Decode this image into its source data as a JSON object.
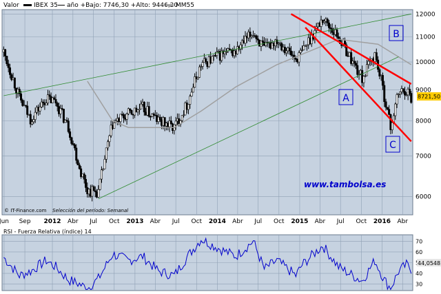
{
  "header": {
    "valor_label": "Valor",
    "series_label": "IBEX 35",
    "stats_label": "año +Bajo: 7746,30 +Alto: 9446,20",
    "ma_label": "MM55"
  },
  "footer": {
    "source": "© IT-Finance.com",
    "selection": "Selección del período: Semanal"
  },
  "watermark": "www.tambolsa.es",
  "annotations": {
    "a": "A",
    "b": "B",
    "c": "C"
  },
  "current_value_label": "8721,50",
  "rsi": {
    "title": "RSI - Fuerza Relativa (índice) 14",
    "current_value_label": "44,0548"
  },
  "colors": {
    "plot_bg": "#c6d2e0",
    "candle": "#000000",
    "moving_average": "#a0a0a0",
    "channel_green": "#2e8b2e",
    "channel_red": "#ff0000",
    "rsi_line": "#0000cc",
    "annotation": "#0000cc",
    "price_tag": "#ffcc00"
  },
  "chart_data": [
    {
      "type": "candlestick",
      "title": "IBEX 35",
      "series": [
        {
          "name": "IBEX 35",
          "close_keypoints": [
            [
              "2011-05-30",
              10380
            ],
            [
              "2011-08-08",
              8700
            ],
            [
              "2011-09-26",
              8050
            ],
            [
              "2011-12-05",
              8700
            ],
            [
              "2012-01-16",
              8600
            ],
            [
              "2012-03-12",
              7800
            ],
            [
              "2012-04-30",
              6700
            ],
            [
              "2012-06-04",
              6150
            ],
            [
              "2012-07-23",
              6100
            ],
            [
              "2012-09-24",
              7900
            ],
            [
              "2012-12-03",
              8200
            ],
            [
              "2013-02-04",
              8400
            ],
            [
              "2013-04-15",
              8000
            ],
            [
              "2013-06-24",
              7800
            ],
            [
              "2013-08-19",
              8500
            ],
            [
              "2013-10-21",
              9900
            ],
            [
              "2014-01-20",
              10300
            ],
            [
              "2014-03-24",
              10400
            ],
            [
              "2014-06-09",
              11200
            ],
            [
              "2014-07-28",
              10500
            ],
            [
              "2014-09-22",
              10900
            ],
            [
              "2014-12-15",
              10100
            ],
            [
              "2015-01-12",
              10400
            ],
            [
              "2015-04-13",
              11800
            ],
            [
              "2015-06-22",
              11000
            ],
            [
              "2015-08-24",
              10000
            ],
            [
              "2015-10-05",
              9400
            ],
            [
              "2015-11-30",
              10300
            ],
            [
              "2016-01-11",
              8800
            ],
            [
              "2016-02-08",
              7800
            ],
            [
              "2016-03-14",
              8900
            ],
            [
              "2016-04-18",
              9000
            ],
            [
              "2016-05-09",
              8721.5
            ]
          ]
        },
        {
          "name": "MM55",
          "points": [
            [
              "2012-06-04",
              9300
            ],
            [
              "2012-09-24",
              8000
            ],
            [
              "2012-12-03",
              7800
            ],
            [
              "2013-06-24",
              7800
            ],
            [
              "2013-10-21",
              8300
            ],
            [
              "2014-03-24",
              9100
            ],
            [
              "2014-09-22",
              9900
            ],
            [
              "2015-01-12",
              10300
            ],
            [
              "2015-06-22",
              10900
            ],
            [
              "2015-12-14",
              10700
            ],
            [
              "2016-05-09",
              9900
            ]
          ]
        }
      ],
      "trend_lines": [
        {
          "name": "green-channel-upper",
          "from": [
            "2011-05-30",
            8800
          ],
          "to": [
            "2016-05-09",
            12000
          ]
        },
        {
          "name": "green-channel-lower",
          "from": [
            "2012-07-23",
            5950
          ],
          "to": [
            "2016-03-14",
            10200
          ]
        },
        {
          "name": "red-channel-upper",
          "from": [
            "2014-11-24",
            12000
          ],
          "to": [
            "2016-05-09",
            9200
          ]
        },
        {
          "name": "red-channel-lower",
          "from": [
            "2015-01-26",
            11400
          ],
          "to": [
            "2016-05-09",
            7400
          ]
        }
      ],
      "x_ticks": [
        "Jun",
        "Sep",
        "2012",
        "Abr",
        "Jul",
        "Oct",
        "2013",
        "Abr",
        "Jul",
        "Oct",
        "2014",
        "Abr",
        "Jul",
        "Oct",
        "2015",
        "Abr",
        "Jul",
        "Oct",
        "2016",
        "Abr"
      ],
      "y_ticks": [
        6000,
        7000,
        8000,
        9000,
        10000,
        11000,
        12000
      ],
      "y_scale": "log",
      "ylim": [
        5600,
        12200
      ],
      "grid": true
    },
    {
      "type": "line",
      "title": "RSI - Fuerza Relativa (índice) 14",
      "series": [
        {
          "name": "RSI",
          "points": [
            [
              "2011-05-30",
              55
            ],
            [
              "2011-08-08",
              38
            ],
            [
              "2011-09-26",
              42
            ],
            [
              "2011-12-05",
              52
            ],
            [
              "2012-01-16",
              46
            ],
            [
              "2012-03-12",
              34
            ],
            [
              "2012-04-30",
              30
            ],
            [
              "2012-06-04",
              26
            ],
            [
              "2012-07-23",
              35
            ],
            [
              "2012-09-24",
              58
            ],
            [
              "2012-12-03",
              52
            ],
            [
              "2013-02-04",
              56
            ],
            [
              "2013-04-15",
              42
            ],
            [
              "2013-06-24",
              38
            ],
            [
              "2013-08-19",
              55
            ],
            [
              "2013-10-21",
              72
            ],
            [
              "2014-01-20",
              62
            ],
            [
              "2014-03-24",
              56
            ],
            [
              "2014-06-09",
              70
            ],
            [
              "2014-07-28",
              44
            ],
            [
              "2014-09-22",
              52
            ],
            [
              "2014-12-15",
              38
            ],
            [
              "2015-01-12",
              48
            ],
            [
              "2015-04-13",
              66
            ],
            [
              "2015-06-22",
              46
            ],
            [
              "2015-08-24",
              38
            ],
            [
              "2015-10-05",
              33
            ],
            [
              "2015-11-30",
              52
            ],
            [
              "2016-01-11",
              34
            ],
            [
              "2016-02-08",
              26
            ],
            [
              "2016-03-14",
              42
            ],
            [
              "2016-04-18",
              48
            ],
            [
              "2016-05-09",
              44.05
            ]
          ]
        }
      ],
      "y_ticks": [
        30,
        40,
        50,
        60,
        70
      ],
      "ylim": [
        24,
        76
      ],
      "grid": true
    }
  ]
}
